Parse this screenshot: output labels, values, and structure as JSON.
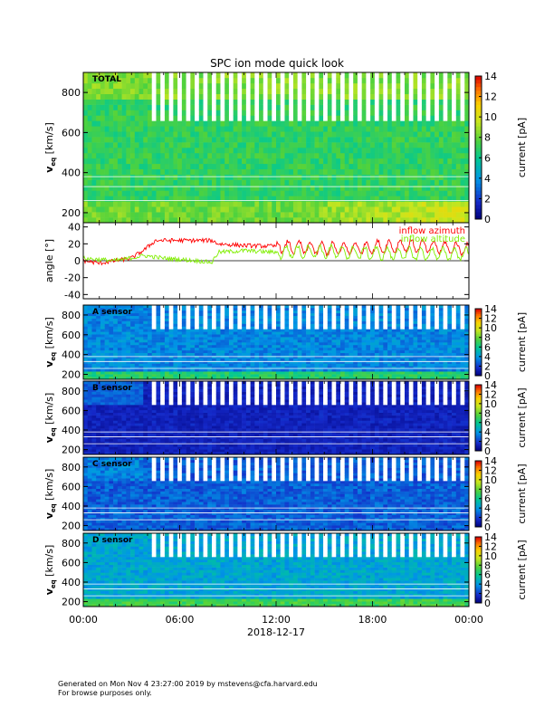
{
  "title": "SPC ion mode quick look",
  "footer": {
    "line1": "Generated on Mon Nov  4 23:27:00 2019 by mstevens@cfa.harvard.edu",
    "line2": "For browse purposes only."
  },
  "chart_data": [
    {
      "type": "heatmap",
      "panel_label": "TOTAL",
      "ylabel": "v",
      "ylabel_sub": "eq",
      "ylabel_unit": "[km/s]",
      "y_ticks": [
        "200",
        "400",
        "600",
        "800"
      ],
      "ylim": [
        150,
        900
      ],
      "colorbar": {
        "label": "current [pA]",
        "ticks": [
          "0",
          "2",
          "4",
          "6",
          "8",
          "10",
          "12",
          "14"
        ],
        "range": [
          0,
          14
        ]
      }
    },
    {
      "type": "line",
      "ylabel": "angle [°]",
      "y_ticks": [
        "-40",
        "-20",
        "0",
        "20",
        "40"
      ],
      "ylim": [
        -45,
        45
      ],
      "series": [
        {
          "name": "inflow azimuth",
          "color": "#ff0000",
          "x_hours": [
            0,
            1,
            2,
            3,
            3.8,
            4.5,
            6,
            8,
            8.4,
            10,
            12,
            14,
            16,
            18,
            20,
            22,
            24
          ],
          "values": [
            0,
            -3,
            0,
            3,
            13,
            24,
            24,
            24,
            20,
            18,
            17,
            15,
            14,
            16,
            18,
            16,
            14
          ]
        },
        {
          "name": "inflow altitude",
          "color": "#80ee00",
          "x_hours": [
            0,
            2,
            3.8,
            5,
            7,
            8,
            8.4,
            10,
            12,
            14,
            16,
            18,
            20,
            22,
            24
          ],
          "values": [
            3,
            0,
            6,
            3,
            0,
            -2,
            10,
            12,
            10,
            11,
            10,
            9,
            8,
            8,
            8
          ]
        }
      ]
    },
    {
      "type": "heatmap",
      "panel_label": "A sensor",
      "ylabel": "v",
      "ylabel_sub": "eq",
      "ylabel_unit": "[km/s]",
      "y_ticks": [
        "200",
        "400",
        "600",
        "800"
      ],
      "ylim": [
        150,
        900
      ],
      "colorbar": {
        "label": "current [pA]",
        "ticks": [
          "0",
          "2",
          "4",
          "6",
          "8",
          "10",
          "12",
          "14"
        ],
        "range": [
          0,
          14
        ]
      }
    },
    {
      "type": "heatmap",
      "panel_label": "B sensor",
      "ylabel": "v",
      "ylabel_sub": "eq",
      "ylabel_unit": "[km/s]",
      "y_ticks": [
        "200",
        "400",
        "600",
        "800"
      ],
      "ylim": [
        150,
        900
      ],
      "colorbar": {
        "label": "current [pA]",
        "ticks": [
          "0",
          "2",
          "4",
          "6",
          "8",
          "10",
          "12",
          "14"
        ],
        "range": [
          0,
          14
        ]
      }
    },
    {
      "type": "heatmap",
      "panel_label": "C sensor",
      "ylabel": "v",
      "ylabel_sub": "eq",
      "ylabel_unit": "[km/s]",
      "y_ticks": [
        "200",
        "400",
        "600",
        "800"
      ],
      "ylim": [
        150,
        900
      ],
      "colorbar": {
        "label": "current [pA]",
        "ticks": [
          "0",
          "2",
          "4",
          "6",
          "8",
          "10",
          "12",
          "14"
        ],
        "range": [
          0,
          14
        ]
      }
    },
    {
      "type": "heatmap",
      "panel_label": "D sensor",
      "ylabel": "v",
      "ylabel_sub": "eq",
      "ylabel_unit": "[km/s]",
      "y_ticks": [
        "200",
        "400",
        "600",
        "800"
      ],
      "ylim": [
        150,
        900
      ],
      "colorbar": {
        "label": "current [pA]",
        "ticks": [
          "0",
          "2",
          "4",
          "6",
          "8",
          "10",
          "12",
          "14"
        ],
        "range": [
          0,
          14
        ]
      }
    }
  ],
  "x_axis": {
    "ticks": [
      "00:00",
      "06:00",
      "12:00",
      "18:00",
      "00:00"
    ],
    "date": "2018-12-17",
    "range_hours": [
      0,
      24
    ]
  }
}
